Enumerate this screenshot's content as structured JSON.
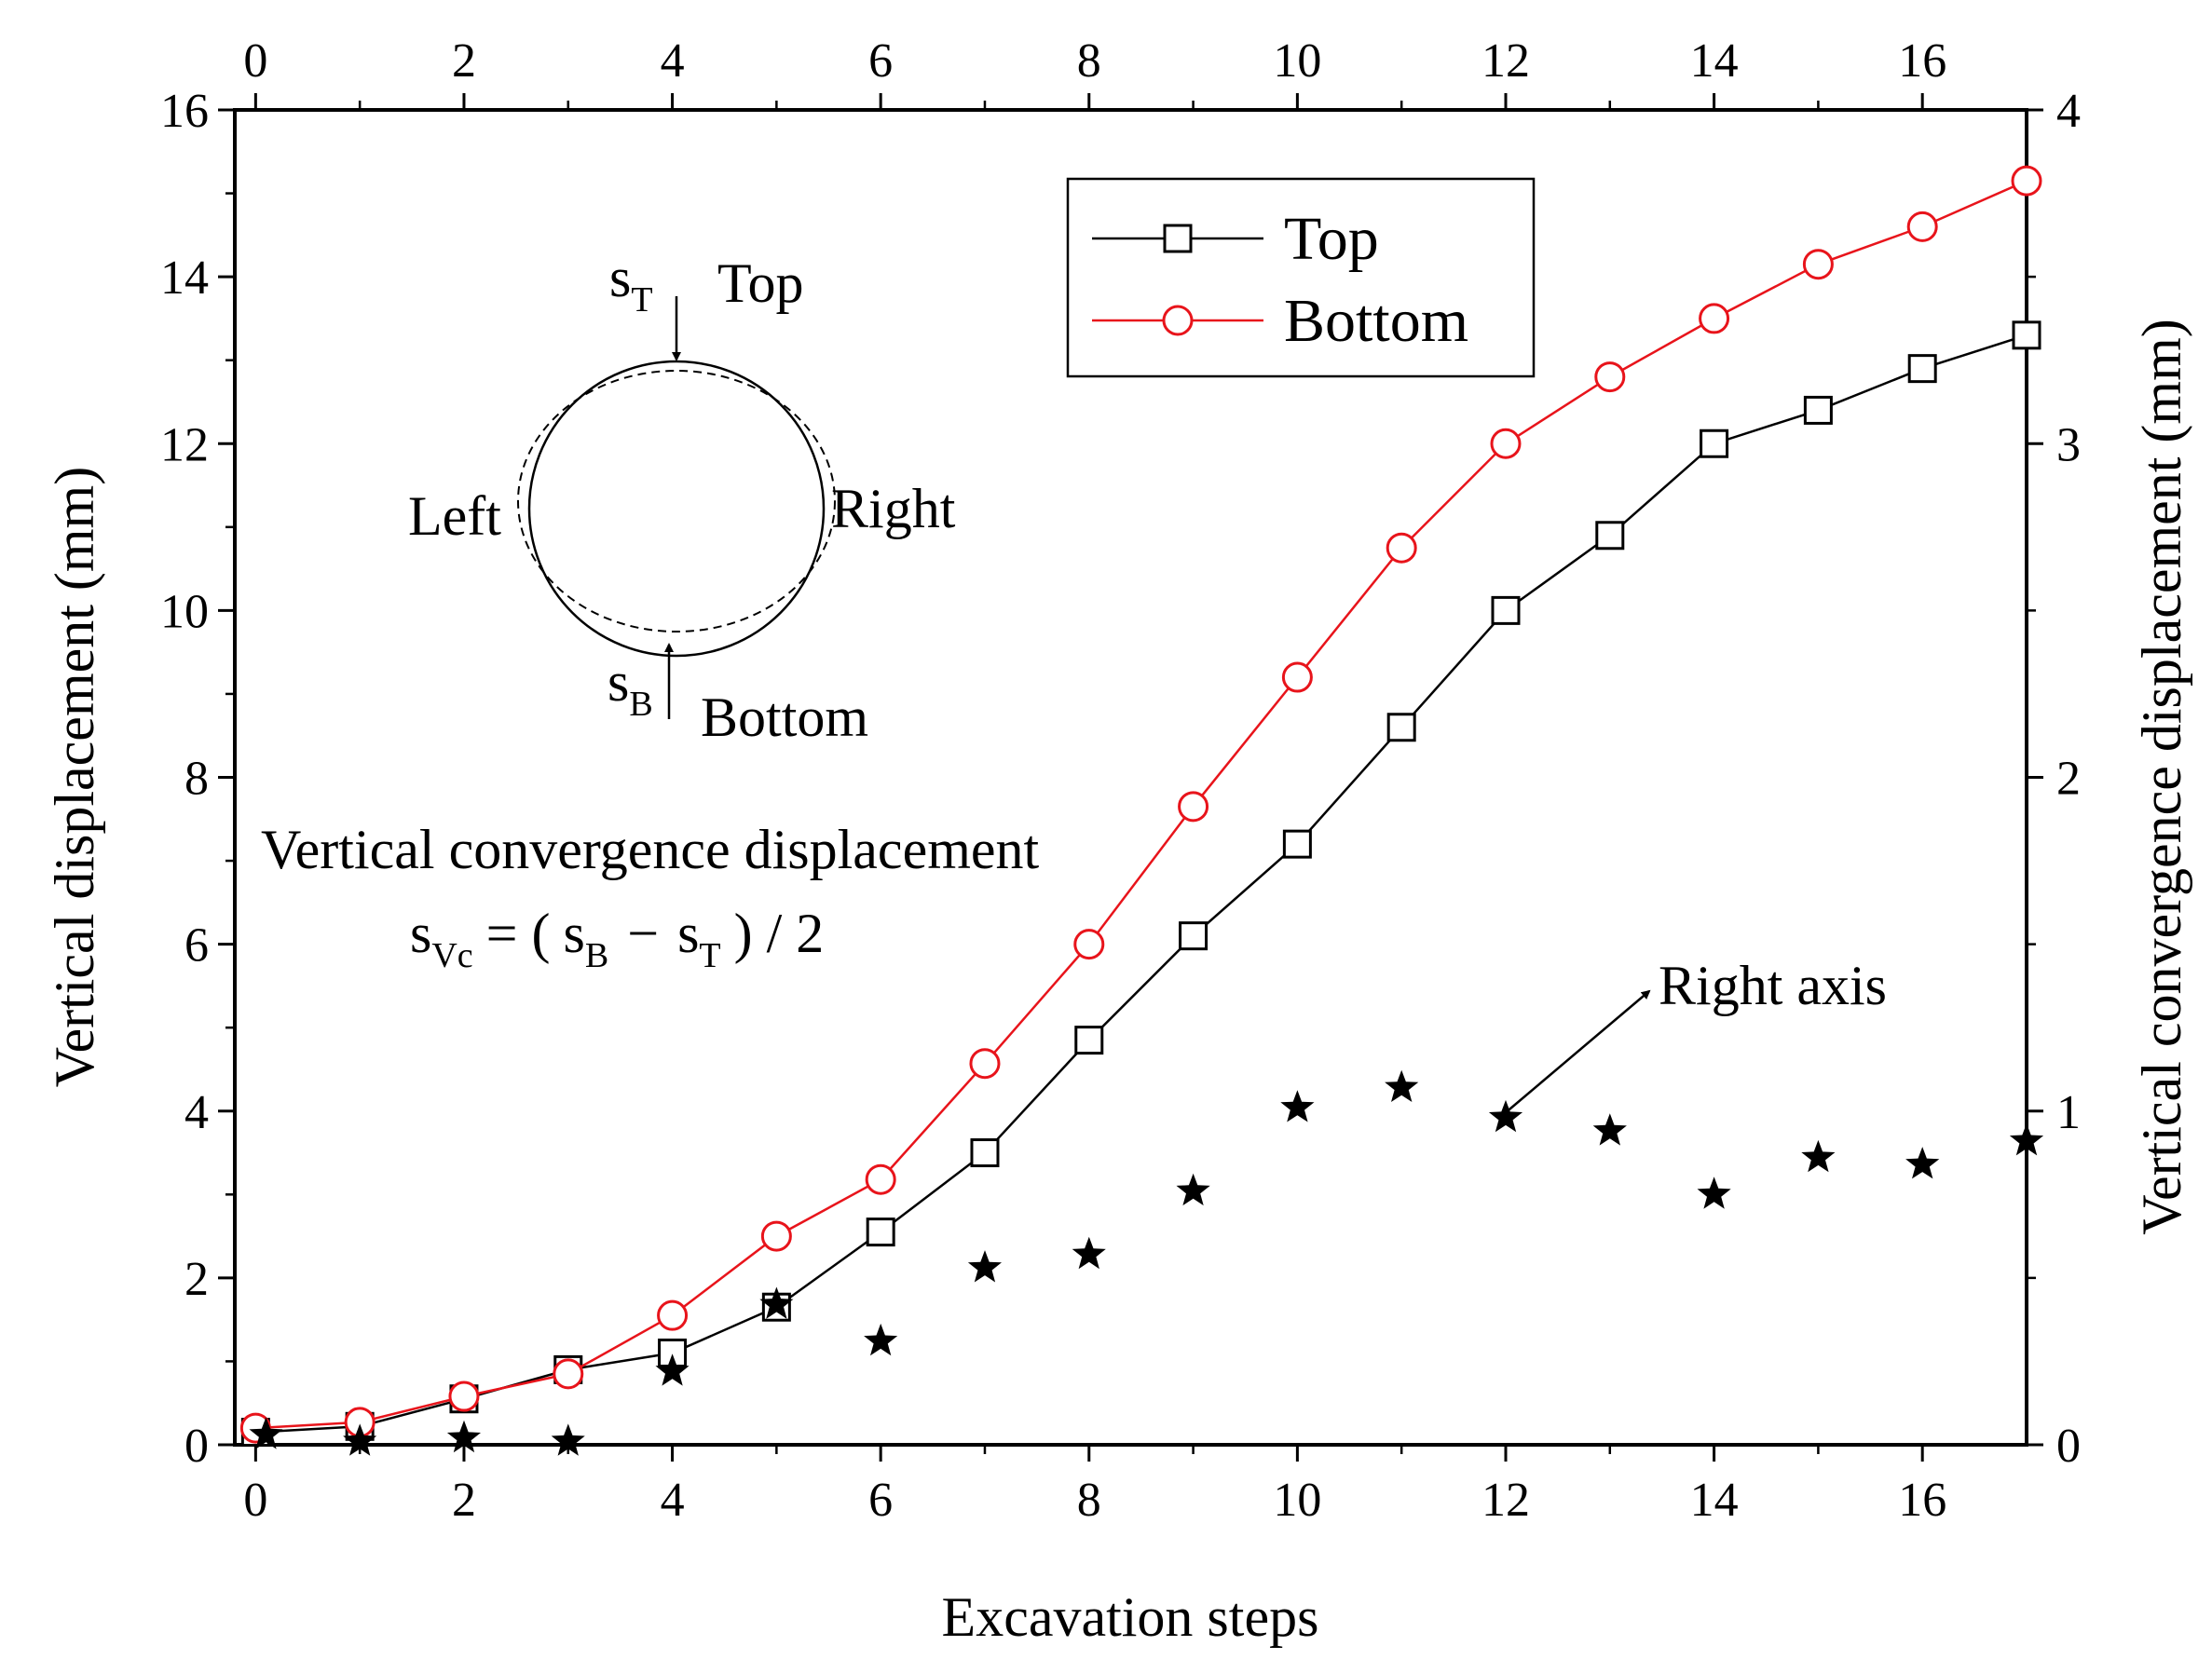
{
  "chart_data": {
    "type": "line",
    "xlabel": "Excavation steps",
    "ylabel": "Vertical  displacement (mm)",
    "y2label": "Vertical convergence displacement (mm)",
    "xlim": [
      -0.2,
      17
    ],
    "ylim": [
      0,
      16
    ],
    "y2lim": [
      0,
      4
    ],
    "x_ticks": [
      0,
      2,
      4,
      6,
      8,
      10,
      12,
      14,
      16
    ],
    "y_ticks": [
      0,
      2,
      4,
      6,
      8,
      10,
      12,
      14,
      16
    ],
    "y2_ticks": [
      0,
      1,
      2,
      3,
      4
    ],
    "grid": false,
    "legend_position": "top-right",
    "series": [
      {
        "name": "Top",
        "axis": "left",
        "marker": "square",
        "color": "#000000",
        "x": [
          0,
          1,
          2,
          3,
          4,
          5,
          6,
          7,
          8,
          9,
          10,
          11,
          12,
          13,
          14,
          15,
          16,
          17
        ],
        "values": [
          0.15,
          0.22,
          0.55,
          0.9,
          1.1,
          1.65,
          2.55,
          3.5,
          4.85,
          6.1,
          7.2,
          8.6,
          10.0,
          10.9,
          12.0,
          12.4,
          12.9,
          13.3
        ]
      },
      {
        "name": "Bottom",
        "axis": "left",
        "marker": "circle",
        "color": "#e8141b",
        "x": [
          0,
          1,
          2,
          3,
          4,
          5,
          6,
          7,
          8,
          9,
          10,
          11,
          12,
          13,
          14,
          15,
          16,
          17
        ],
        "values": [
          0.2,
          0.27,
          0.58,
          0.85,
          1.55,
          2.5,
          3.18,
          4.57,
          6.0,
          7.65,
          9.2,
          10.75,
          12.0,
          12.8,
          13.5,
          14.15,
          14.6,
          15.15
        ]
      },
      {
        "name": "",
        "axis": "right",
        "marker": "star",
        "color": "#000000",
        "x": [
          0.1,
          1,
          2,
          3,
          4,
          5,
          6,
          7,
          8,
          9,
          10,
          11,
          12,
          13,
          14,
          15,
          16,
          17
        ],
        "values": [
          0.03,
          0.01,
          0.02,
          0.01,
          0.22,
          0.42,
          0.31,
          0.53,
          0.57,
          0.76,
          1.01,
          1.07,
          0.98,
          0.94,
          0.75,
          0.86,
          0.84,
          0.91
        ]
      }
    ],
    "annotations": {
      "diagram_top": "Top",
      "diagram_bottom": "Bottom",
      "diagram_left": "Left",
      "diagram_right": "Right",
      "s_letter": "s",
      "sub_T": "T",
      "sub_B": "B",
      "sub_Vc": "Vc",
      "formula_title": "Vertical convergence displacement",
      "formula_eq": "= (",
      "formula_minus": "−",
      "formula_end": ") / 2",
      "right_axis_note": "Right axis"
    }
  }
}
